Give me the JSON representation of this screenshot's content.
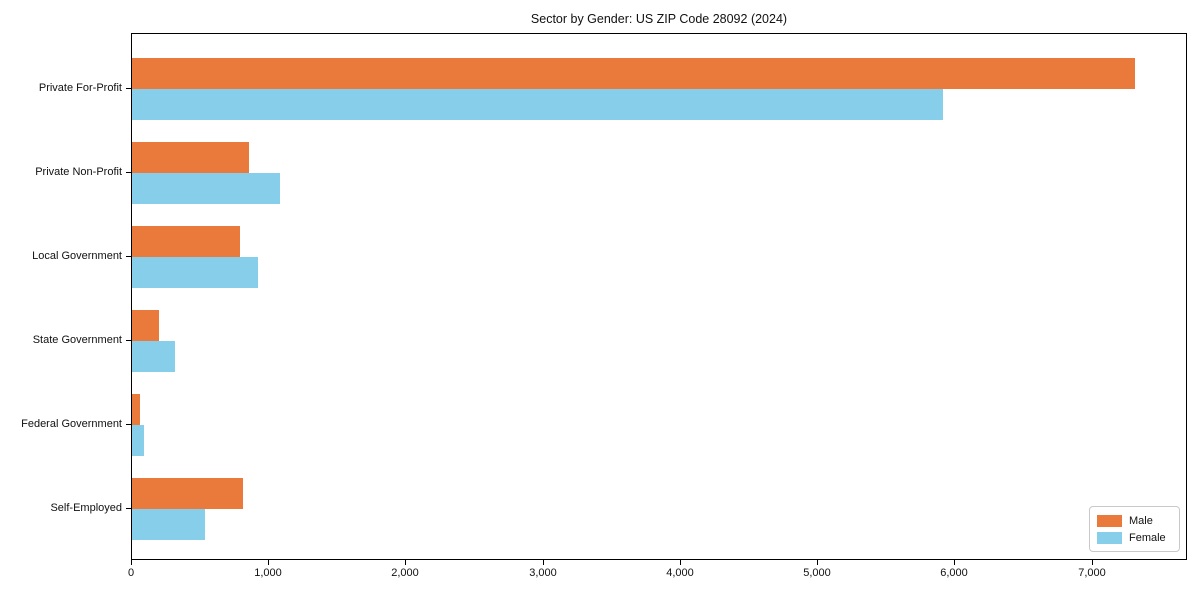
{
  "chart_data": {
    "type": "bar",
    "orientation": "horizontal",
    "title": "Sector by Gender: US ZIP Code 28092 (2024)",
    "categories": [
      "Private For-Profit",
      "Private Non-Profit",
      "Local Government",
      "State Government",
      "Federal Government",
      "Self-Employed"
    ],
    "series": [
      {
        "name": "Male",
        "color": "#EA7A3B",
        "values": [
          7310,
          850,
          790,
          200,
          60,
          810
        ]
      },
      {
        "name": "Female",
        "color": "#87CEEB",
        "values": [
          5910,
          1080,
          920,
          310,
          90,
          530
        ]
      }
    ],
    "xlim": [
      0,
      7680
    ],
    "xticks": [
      0,
      1000,
      2000,
      3000,
      4000,
      5000,
      6000,
      7000
    ],
    "xticklabels": [
      "0",
      "1,000",
      "2,000",
      "3,000",
      "4,000",
      "5,000",
      "6,000",
      "7,000"
    ],
    "ylabel": "",
    "xlabel": "",
    "grid": false,
    "legend_position": "lower right"
  }
}
